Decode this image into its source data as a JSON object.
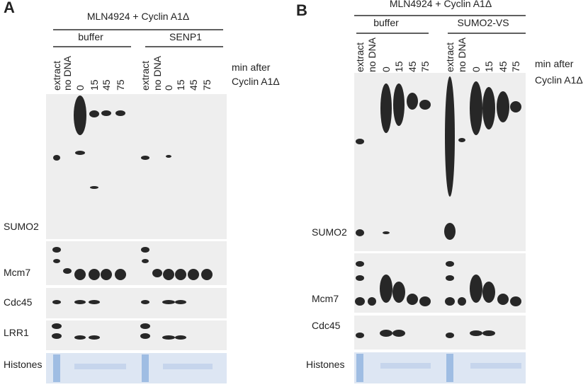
{
  "panels": [
    {
      "label": "A",
      "header": "MLN4924 + Cyclin A1Δ",
      "groups": [
        "buffer",
        "SENP1"
      ],
      "lanes": [
        "extract",
        "no DNA",
        "0",
        "15",
        "45",
        "75",
        "extract",
        "no DNA",
        "0",
        "15",
        "45",
        "75"
      ],
      "time_note": [
        "min after",
        "Cyclin A1Δ"
      ],
      "blots": [
        "SUMO2",
        "Mcm7",
        "Cdc45",
        "LRR1",
        "Histones"
      ]
    },
    {
      "label": "B",
      "header": "MLN4924 + Cyclin A1Δ",
      "groups": [
        "buffer",
        "SUMO2-VS"
      ],
      "lanes": [
        "extract",
        "no DNA",
        "0",
        "15",
        "45",
        "75",
        "extract",
        "no DNA",
        "0",
        "15",
        "45",
        "75"
      ],
      "time_note": [
        "min after",
        "Cyclin A1Δ"
      ],
      "blots": [
        "SUMO2",
        "Mcm7",
        "Cdc45",
        "Histones"
      ]
    }
  ]
}
